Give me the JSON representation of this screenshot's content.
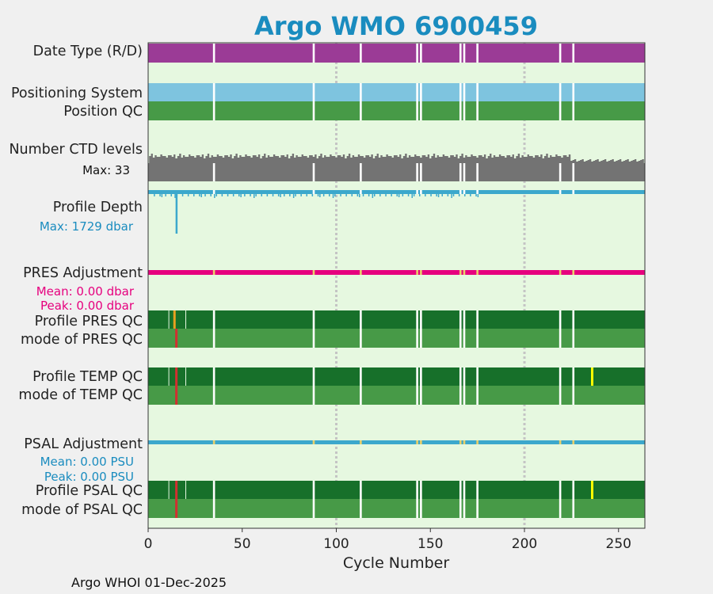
{
  "chart_data": {
    "type": "status-timeline",
    "title": "Argo WMO 6900459",
    "xlabel": "Cycle Number",
    "xlim": [
      0,
      264
    ],
    "xticks": [
      0,
      50,
      100,
      150,
      200,
      250
    ],
    "grid_x": [
      100,
      200
    ],
    "missing_cycles": [
      35,
      88,
      113,
      143,
      145,
      166,
      168,
      175,
      219,
      226
    ],
    "rows": [
      {
        "label": "Date Type (R/D)",
        "color": "#9b3b96"
      },
      {
        "label": "Positioning System",
        "color": "#7ec4df"
      },
      {
        "label": "Position QC",
        "color": "#479a47"
      },
      {
        "label": "Number CTD levels",
        "max_text": "Max: 33",
        "max_value": 33,
        "color": "#737373"
      },
      {
        "label": "Profile Depth",
        "max_text": "Max: 1729 dbar",
        "max_value": 1729,
        "spike_cycle": 15,
        "color": "#3ca8cc",
        "text_color": "#1a8cbf"
      },
      {
        "label": "PRES Adjustment",
        "mean_text": "Mean: 0.00 dbar",
        "peak_text": "Peak: 0.00 dbar",
        "mean": 0.0,
        "peak": 0.0,
        "color": "#e6007e",
        "text_color": "#e6007e"
      },
      {
        "label": "Profile PRES QC",
        "color": "#17702a",
        "flags": [
          {
            "cycle": 14,
            "color": "#e8a020"
          }
        ]
      },
      {
        "label": "mode of PRES QC",
        "color": "#479a47",
        "flags": [
          {
            "cycle": 15,
            "color": "#d03030"
          }
        ]
      },
      {
        "label": "Profile TEMP QC",
        "color": "#17702a",
        "flags": [
          {
            "cycle": 15,
            "color": "#d03030"
          },
          {
            "cycle": 236,
            "color": "#ffff00"
          }
        ]
      },
      {
        "label": "mode of TEMP QC",
        "color": "#479a47",
        "flags": [
          {
            "cycle": 15,
            "color": "#d03030"
          }
        ]
      },
      {
        "label": "PSAL Adjustment",
        "mean_text": "Mean: 0.00 PSU",
        "peak_text": "Peak: 0.00 PSU",
        "mean": 0.0,
        "peak": 0.0,
        "color": "#3ca8cc",
        "text_color": "#1a8cbf"
      },
      {
        "label": "Profile PSAL QC",
        "color": "#17702a",
        "flags": [
          {
            "cycle": 15,
            "color": "#d03030"
          },
          {
            "cycle": 236,
            "color": "#ffff00"
          }
        ]
      },
      {
        "label": "mode of PSAL QC",
        "color": "#479a47",
        "flags": [
          {
            "cycle": 15,
            "color": "#d03030"
          }
        ]
      }
    ]
  },
  "footer": "Argo WHOI 01-Dec-2025"
}
